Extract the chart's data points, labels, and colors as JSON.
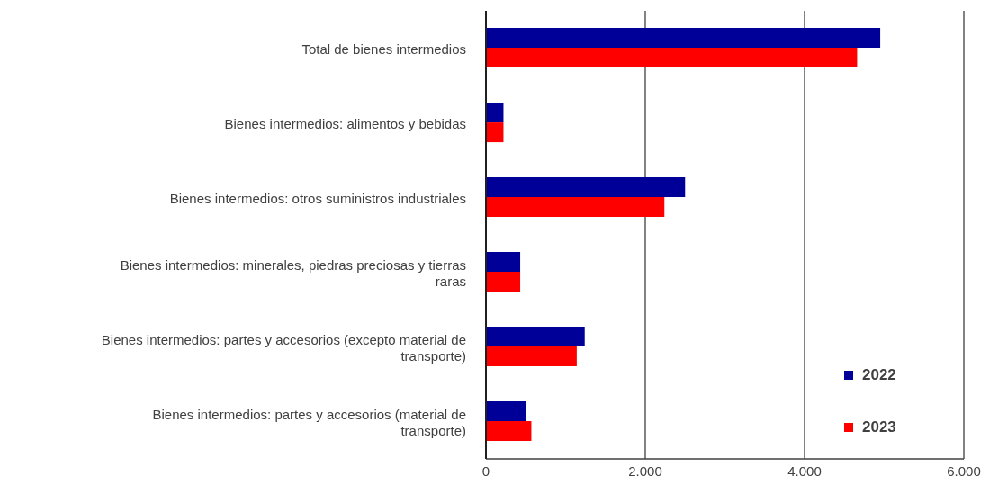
{
  "chart_data": {
    "type": "bar",
    "orientation": "horizontal",
    "categories": [
      "Total de bienes intermedios",
      "Bienes intermedios: alimentos y bebidas",
      "Bienes intermedios: otros suministros industriales",
      "Bienes intermedios: minerales, piedras preciosas y tierras raras",
      "Bienes intermedios: partes y accesorios (excepto material de transporte)",
      "Bienes intermedios: partes y accesorios (material de transporte)"
    ],
    "series": [
      {
        "name": "2022",
        "color": "#000099",
        "values": [
          4950,
          220,
          2500,
          430,
          1240,
          500
        ]
      },
      {
        "name": "2023",
        "color": "#ff0000",
        "values": [
          4660,
          220,
          2240,
          430,
          1140,
          570
        ]
      }
    ],
    "xlim": [
      0,
      6000
    ],
    "xticks": [
      0,
      {
        "value": 2000,
        "label": "2.000"
      },
      {
        "value": 4000,
        "label": "4.000"
      },
      {
        "value": 6000,
        "label": "6.000"
      }
    ],
    "grid": "x",
    "legend": "bottom right"
  }
}
